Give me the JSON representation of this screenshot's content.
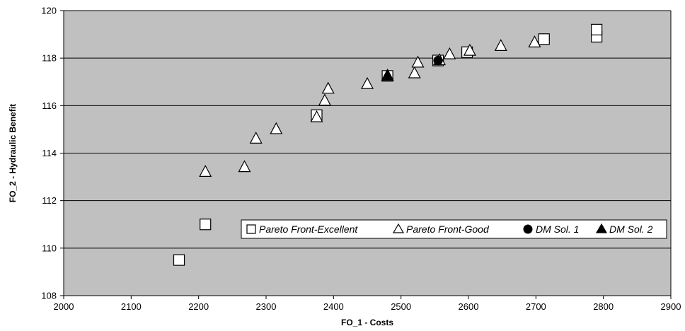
{
  "chart_data": {
    "type": "scatter",
    "title": "",
    "xlabel": "FO_1 - Costs",
    "ylabel": "FO_2 - Hydraulic Benefit",
    "xlim": [
      2000,
      2900
    ],
    "ylim": [
      108,
      120
    ],
    "x_ticks": [
      2000,
      2100,
      2200,
      2300,
      2400,
      2500,
      2600,
      2700,
      2800,
      2900
    ],
    "y_ticks": [
      108,
      110,
      112,
      114,
      116,
      118,
      120
    ],
    "grid": "horizontal",
    "plot_background": "#c0c0c0",
    "legend_position": "lower-right",
    "series": [
      {
        "name": "Pareto Front-Excellent",
        "marker": "square-open",
        "color": "#000000",
        "fill": "#ffffff",
        "points": [
          [
            2171,
            109.5
          ],
          [
            2210,
            111.0
          ],
          [
            2375,
            115.6
          ],
          [
            2480,
            117.25
          ],
          [
            2555,
            117.9
          ],
          [
            2598,
            118.25
          ],
          [
            2712,
            118.8
          ],
          [
            2790,
            118.9
          ],
          [
            2790,
            119.2
          ]
        ]
      },
      {
        "name": "Pareto Front-Good",
        "marker": "triangle-open",
        "color": "#000000",
        "fill": "#ffffff",
        "points": [
          [
            2210,
            113.2
          ],
          [
            2268,
            113.4
          ],
          [
            2285,
            114.6
          ],
          [
            2315,
            115.0
          ],
          [
            2375,
            115.5
          ],
          [
            2387,
            116.2
          ],
          [
            2392,
            116.7
          ],
          [
            2450,
            116.9
          ],
          [
            2480,
            117.25
          ],
          [
            2520,
            117.35
          ],
          [
            2525,
            117.8
          ],
          [
            2557,
            117.9
          ],
          [
            2572,
            118.15
          ],
          [
            2602,
            118.3
          ],
          [
            2648,
            118.5
          ],
          [
            2698,
            118.65
          ]
        ]
      },
      {
        "name": "DM Sol. 1",
        "marker": "circle-filled",
        "color": "#000000",
        "fill": "#000000",
        "points": [
          [
            2555,
            117.9
          ]
        ]
      },
      {
        "name": "DM Sol. 2",
        "marker": "triangle-filled",
        "color": "#000000",
        "fill": "#000000",
        "points": [
          [
            2480,
            117.25
          ]
        ]
      }
    ]
  }
}
